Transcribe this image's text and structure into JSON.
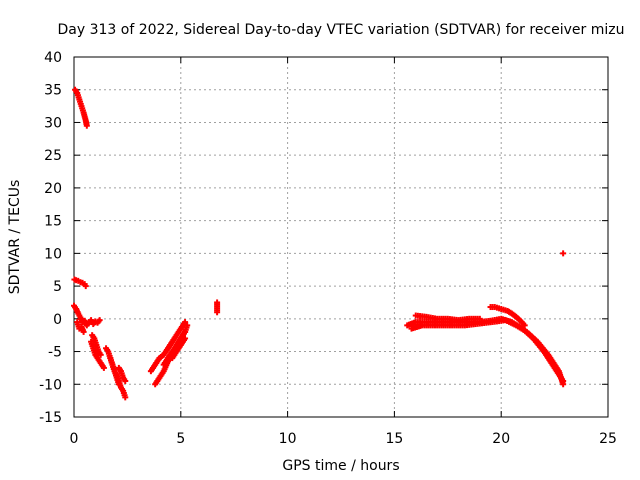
{
  "chart_data": {
    "type": "scatter",
    "title": "Day 313 of 2022, Sidereal Day-to-day VTEC variation (SDTVAR) for receiver mizu",
    "xlabel": "GPS time / hours",
    "ylabel": "SDTVAR / TECUs",
    "xlim": [
      0,
      25
    ],
    "ylim": [
      -15,
      40
    ],
    "xticks": [
      0,
      5,
      10,
      15,
      20,
      25
    ],
    "yticks": [
      -15,
      -10,
      -5,
      0,
      5,
      10,
      15,
      20,
      25,
      30,
      35,
      40
    ],
    "grid": true,
    "marker": "plus",
    "color": "#ff0000",
    "series": [
      {
        "name": "SDTVAR",
        "segments": [
          {
            "x": [
              0.05,
              0.15,
              0.25,
              0.35,
              0.45,
              0.55,
              0.6
            ],
            "y": [
              35,
              34.5,
              33.5,
              32.5,
              31.5,
              30.3,
              29.5
            ]
          },
          {
            "x": [
              0.02,
              0.1,
              0.2,
              0.3,
              0.4,
              0.5,
              0.55
            ],
            "y": [
              6,
              5.9,
              5.8,
              5.6,
              5.5,
              5.3,
              5.0
            ]
          },
          {
            "x": [
              0.0,
              0.1,
              0.2,
              0.3,
              0.4,
              0.5,
              0.6,
              0.7,
              0.8,
              0.9,
              1.0,
              1.1,
              1.2
            ],
            "y": [
              2,
              1.5,
              0.8,
              0.2,
              -0.5,
              -0.3,
              -1.0,
              -0.5,
              -0.2,
              -0.8,
              -0.4,
              -0.6,
              -0.2
            ]
          },
          {
            "x": [
              0.15,
              0.25,
              0.35,
              0.45
            ],
            "y": [
              -0.5,
              -1.5,
              -1.2,
              -2.0
            ]
          },
          {
            "x": [
              0.8,
              0.9,
              1.0,
              1.1,
              1.2,
              1.3,
              1.4
            ],
            "y": [
              -3.5,
              -4.5,
              -5.5,
              -6.0,
              -6.5,
              -7.0,
              -7.5
            ]
          },
          {
            "x": [
              0.85,
              0.95,
              1.05,
              1.15,
              1.25
            ],
            "y": [
              -2.5,
              -3.0,
              -4.0,
              -5.0,
              -5.5
            ]
          },
          {
            "x": [
              1.5,
              1.6,
              1.7,
              1.8,
              1.9,
              2.0,
              2.1
            ],
            "y": [
              -4.5,
              -5.0,
              -6.0,
              -7.0,
              -8.0,
              -9.0,
              -10.0
            ]
          },
          {
            "x": [
              1.7,
              1.8,
              1.9,
              2.0,
              2.1,
              2.2,
              2.3,
              2.4
            ],
            "y": [
              -6.0,
              -7.0,
              -8.0,
              -8.5,
              -9.5,
              -10.5,
              -11.0,
              -12.0
            ]
          },
          {
            "x": [
              2.1,
              2.2,
              2.3,
              2.4
            ],
            "y": [
              -7.5,
              -8.0,
              -9.0,
              -9.5
            ]
          },
          {
            "x": [
              3.6,
              3.8,
              4.0,
              4.2,
              4.4,
              4.6,
              4.8,
              5.0,
              5.2
            ],
            "y": [
              -8.0,
              -7.0,
              -6.0,
              -5.5,
              -4.5,
              -3.5,
              -2.5,
              -1.5,
              -0.5
            ]
          },
          {
            "x": [
              3.8,
              4.0,
              4.2,
              4.4,
              4.6,
              4.8,
              5.0,
              5.2
            ],
            "y": [
              -10.0,
              -9.0,
              -8.0,
              -6.5,
              -5.5,
              -4.0,
              -3.0,
              -2.0
            ]
          },
          {
            "x": [
              4.2,
              4.4,
              4.6,
              4.8,
              5.0,
              5.2,
              5.3
            ],
            "y": [
              -7.0,
              -6.0,
              -5.0,
              -4.0,
              -3.0,
              -2.0,
              -1.0
            ]
          },
          {
            "x": [
              4.6,
              4.8,
              5.0,
              5.2
            ],
            "y": [
              -6.0,
              -5.0,
              -4.0,
              -3.0
            ]
          },
          {
            "x": [
              6.7,
              6.7
            ],
            "y": [
              2.5,
              1.0
            ]
          },
          {
            "x": [
              15.6,
              16.0,
              16.5,
              17.0,
              17.5,
              18.0,
              18.5,
              19.0,
              19.5,
              20.0,
              20.5,
              21.0,
              21.5,
              22.0,
              22.5,
              22.9
            ],
            "y": [
              -1.0,
              -0.5,
              -0.5,
              -0.5,
              -0.5,
              -0.5,
              -0.5,
              -0.5,
              -0.3,
              0.0,
              -0.5,
              -1.5,
              -3.0,
              -5.0,
              -7.5,
              -9.5
            ]
          },
          {
            "x": [
              15.8,
              16.3,
              16.8,
              17.3,
              17.8,
              18.3,
              18.8,
              19.3,
              19.8,
              20.2,
              20.7,
              21.2,
              21.7,
              22.2,
              22.7,
              22.9
            ],
            "y": [
              -1.5,
              -1.0,
              -1.0,
              -1.0,
              -1.0,
              -1.0,
              -0.8,
              -0.6,
              -0.4,
              -0.2,
              -1.0,
              -2.0,
              -3.5,
              -5.5,
              -8.0,
              -10.0
            ]
          },
          {
            "x": [
              16.0,
              16.5,
              17.0,
              17.5,
              18.0,
              18.5,
              19.0
            ],
            "y": [
              0.5,
              0.3,
              0.0,
              0.0,
              -0.2,
              0.0,
              0.0
            ]
          },
          {
            "x": [
              19.5,
              19.7,
              19.9,
              20.1,
              20.3,
              20.5,
              20.7,
              20.9,
              21.1
            ],
            "y": [
              1.8,
              1.8,
              1.6,
              1.4,
              1.2,
              0.8,
              0.3,
              -0.3,
              -1.0
            ]
          },
          {
            "x": [
              22.9
            ],
            "y": [
              10.0
            ]
          }
        ]
      }
    ]
  }
}
